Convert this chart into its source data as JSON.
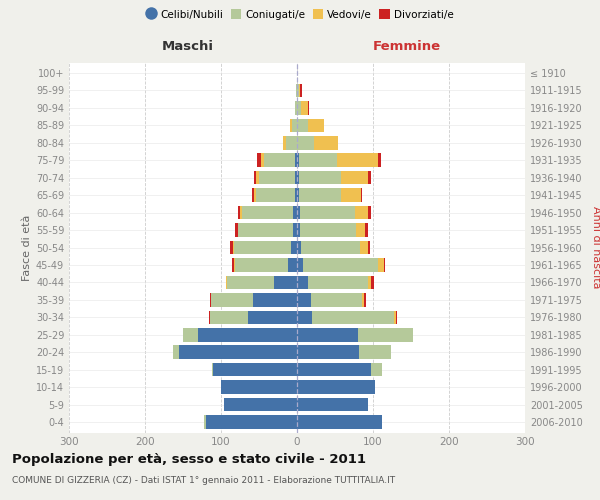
{
  "age_groups": [
    "0-4",
    "5-9",
    "10-14",
    "15-19",
    "20-24",
    "25-29",
    "30-34",
    "35-39",
    "40-44",
    "45-49",
    "50-54",
    "55-59",
    "60-64",
    "65-69",
    "70-74",
    "75-79",
    "80-84",
    "85-89",
    "90-94",
    "95-99",
    "100+"
  ],
  "birth_years": [
    "2006-2010",
    "2001-2005",
    "1996-2000",
    "1991-1995",
    "1986-1990",
    "1981-1985",
    "1976-1980",
    "1971-1975",
    "1966-1970",
    "1961-1965",
    "1956-1960",
    "1951-1955",
    "1946-1950",
    "1941-1945",
    "1936-1940",
    "1931-1935",
    "1926-1930",
    "1921-1925",
    "1916-1920",
    "1911-1915",
    "≤ 1910"
  ],
  "males": {
    "celibi": [
      120,
      96,
      100,
      110,
      155,
      130,
      65,
      58,
      30,
      12,
      8,
      5,
      5,
      2,
      2,
      2,
      0,
      0,
      0,
      0,
      0
    ],
    "coniugati": [
      2,
      0,
      0,
      2,
      8,
      20,
      50,
      55,
      62,
      70,
      75,
      72,
      68,
      52,
      48,
      42,
      14,
      6,
      2,
      1,
      0
    ],
    "vedovi": [
      0,
      0,
      0,
      0,
      0,
      0,
      0,
      0,
      1,
      1,
      1,
      1,
      2,
      3,
      4,
      4,
      4,
      3,
      1,
      0,
      0
    ],
    "divorziati": [
      0,
      0,
      0,
      0,
      0,
      0,
      1,
      2,
      1,
      2,
      4,
      4,
      3,
      2,
      3,
      4,
      0,
      0,
      0,
      0,
      0
    ]
  },
  "females": {
    "nubili": [
      112,
      93,
      102,
      98,
      82,
      80,
      20,
      18,
      15,
      8,
      5,
      4,
      4,
      2,
      2,
      2,
      0,
      0,
      0,
      0,
      0
    ],
    "coniugate": [
      0,
      0,
      0,
      14,
      42,
      72,
      108,
      68,
      78,
      98,
      78,
      74,
      72,
      56,
      56,
      50,
      22,
      14,
      5,
      2,
      0
    ],
    "vedove": [
      0,
      0,
      0,
      0,
      0,
      0,
      2,
      2,
      5,
      8,
      10,
      12,
      18,
      26,
      36,
      54,
      32,
      22,
      9,
      2,
      0
    ],
    "divorziate": [
      0,
      0,
      0,
      0,
      0,
      1,
      2,
      3,
      3,
      2,
      3,
      4,
      4,
      1,
      3,
      4,
      0,
      0,
      2,
      2,
      0
    ]
  },
  "colors": {
    "celibi": "#4472a8",
    "coniugati": "#b5c99a",
    "vedovi": "#f0c050",
    "divorziati": "#cc2222"
  },
  "title": "Popolazione per età, sesso e stato civile - 2011",
  "subtitle": "COMUNE DI GIZZERIA (CZ) - Dati ISTAT 1° gennaio 2011 - Elaborazione TUTTITALIA.IT",
  "label_maschi": "Maschi",
  "label_femmine": "Femmine",
  "ylabel_left": "Fasce di età",
  "ylabel_right": "Anni di nascita",
  "xlim": 300,
  "bg_color": "#f0f0eb",
  "plot_bg": "#ffffff",
  "legend_labels": [
    "Celibi/Nubili",
    "Coniugati/e",
    "Vedovi/e",
    "Divorziati/e"
  ],
  "grid_color": "#cccccc",
  "tick_color": "#888888"
}
